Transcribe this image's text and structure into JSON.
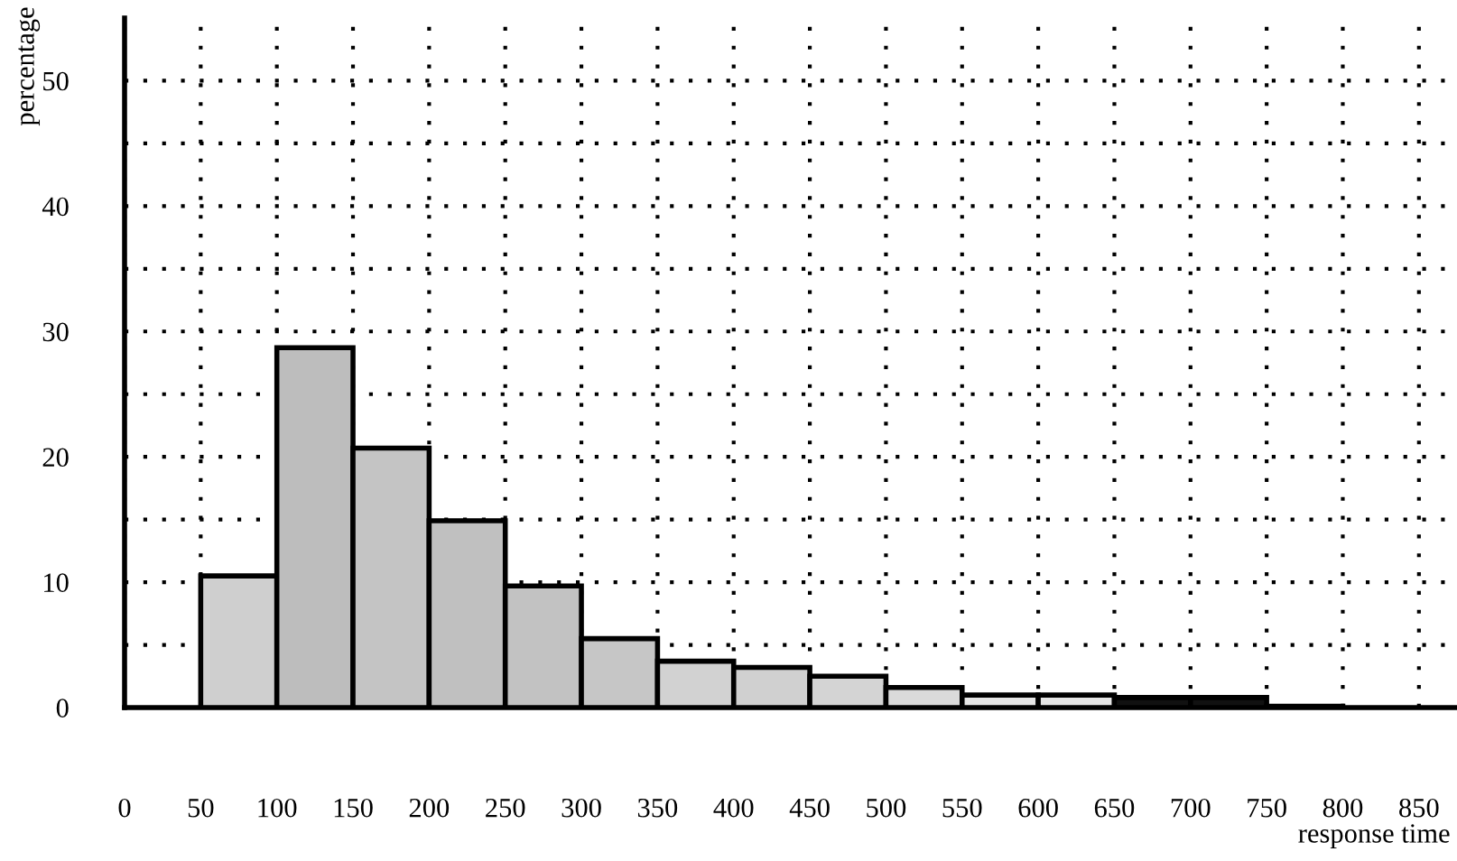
{
  "chart_data": {
    "type": "histogram",
    "xlabel": "response time",
    "ylabel": "percentage",
    "bins": [
      50,
      100,
      150,
      200,
      250,
      300,
      350,
      400,
      450,
      500,
      550,
      600,
      650,
      700,
      750,
      800
    ],
    "values": [
      10.5,
      28.7,
      20.7,
      14.9,
      9.7,
      5.5,
      3.7,
      3.2,
      2.5,
      1.6,
      1.0,
      1.0,
      0.8,
      0.8,
      0.1
    ],
    "colors": [
      "#cfcfcf",
      "#bdbdbd",
      "#c4c4c4",
      "#c0c0c0",
      "#c2c2c2",
      "#c6c6c6",
      "#d2d2d2",
      "#d0d0d0",
      "#d4d4d4",
      "#dadada",
      "#e6e6e6",
      "#e6e6e6",
      "#111111",
      "#111111",
      "#111111"
    ],
    "xlim": [
      0,
      875
    ],
    "xticks": [
      0,
      50,
      100,
      150,
      200,
      250,
      300,
      350,
      400,
      450,
      500,
      550,
      600,
      650,
      700,
      750,
      800,
      850
    ],
    "ylim": [
      0,
      55
    ],
    "yticks": [
      0,
      {
        "value": 5,
        "label": null
      },
      10,
      {
        "value": 15,
        "label": null
      },
      20,
      {
        "value": 25,
        "label": null
      },
      30,
      {
        "value": 35,
        "label": null
      },
      40,
      {
        "value": 45,
        "label": null
      },
      50
    ],
    "grid": true
  }
}
